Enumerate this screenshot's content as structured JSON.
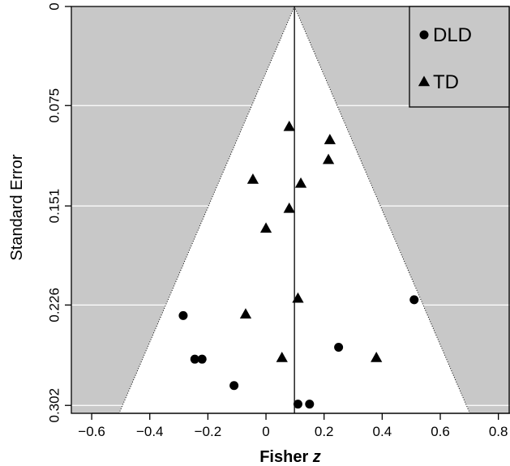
{
  "chart_data": {
    "type": "scatter",
    "title": "",
    "xlabel_main": "Fisher ",
    "xlabel_var": "z",
    "ylabel": "Standard Error",
    "xlim": [
      -0.67,
      0.84
    ],
    "ylim": [
      0.308,
      0
    ],
    "x_ticks": [
      -0.6,
      -0.4,
      -0.2,
      0,
      0.2,
      0.4,
      0.6,
      0.8
    ],
    "x_tick_labels": [
      "−0.6",
      "−0.4",
      "−0.2",
      "0",
      "0.2",
      "0.4",
      "0.6",
      "0.8"
    ],
    "y_ticks": [
      0,
      0.075,
      0.151,
      0.226,
      0.302
    ],
    "y_tick_labels": [
      "0",
      "0.075",
      "0.151",
      "0.226",
      "0.302"
    ],
    "grid": "horizontal",
    "legend_position": "top-right",
    "funnel": {
      "center": 0.098,
      "se_max": 0.302,
      "z": 1.96
    },
    "colors": {
      "outside": "#c8c8c8",
      "inside": "#ffffff",
      "points": "#000000"
    },
    "series": [
      {
        "name": "DLD",
        "marker": "circle",
        "points": [
          {
            "x": 0.51,
            "y": 0.222
          },
          {
            "x": -0.285,
            "y": 0.234
          },
          {
            "x": 0.25,
            "y": 0.258
          },
          {
            "x": -0.245,
            "y": 0.267
          },
          {
            "x": -0.22,
            "y": 0.267
          },
          {
            "x": -0.11,
            "y": 0.287
          },
          {
            "x": 0.11,
            "y": 0.301
          },
          {
            "x": 0.15,
            "y": 0.301
          }
        ]
      },
      {
        "name": "TD",
        "marker": "triangle",
        "points": [
          {
            "x": 0.08,
            "y": 0.091
          },
          {
            "x": 0.22,
            "y": 0.101
          },
          {
            "x": 0.215,
            "y": 0.116
          },
          {
            "x": -0.045,
            "y": 0.131
          },
          {
            "x": 0.12,
            "y": 0.134
          },
          {
            "x": 0.08,
            "y": 0.153
          },
          {
            "x": 0.0,
            "y": 0.168
          },
          {
            "x": 0.11,
            "y": 0.221
          },
          {
            "x": -0.07,
            "y": 0.233
          },
          {
            "x": 0.055,
            "y": 0.266
          },
          {
            "x": 0.38,
            "y": 0.266
          }
        ]
      }
    ]
  }
}
